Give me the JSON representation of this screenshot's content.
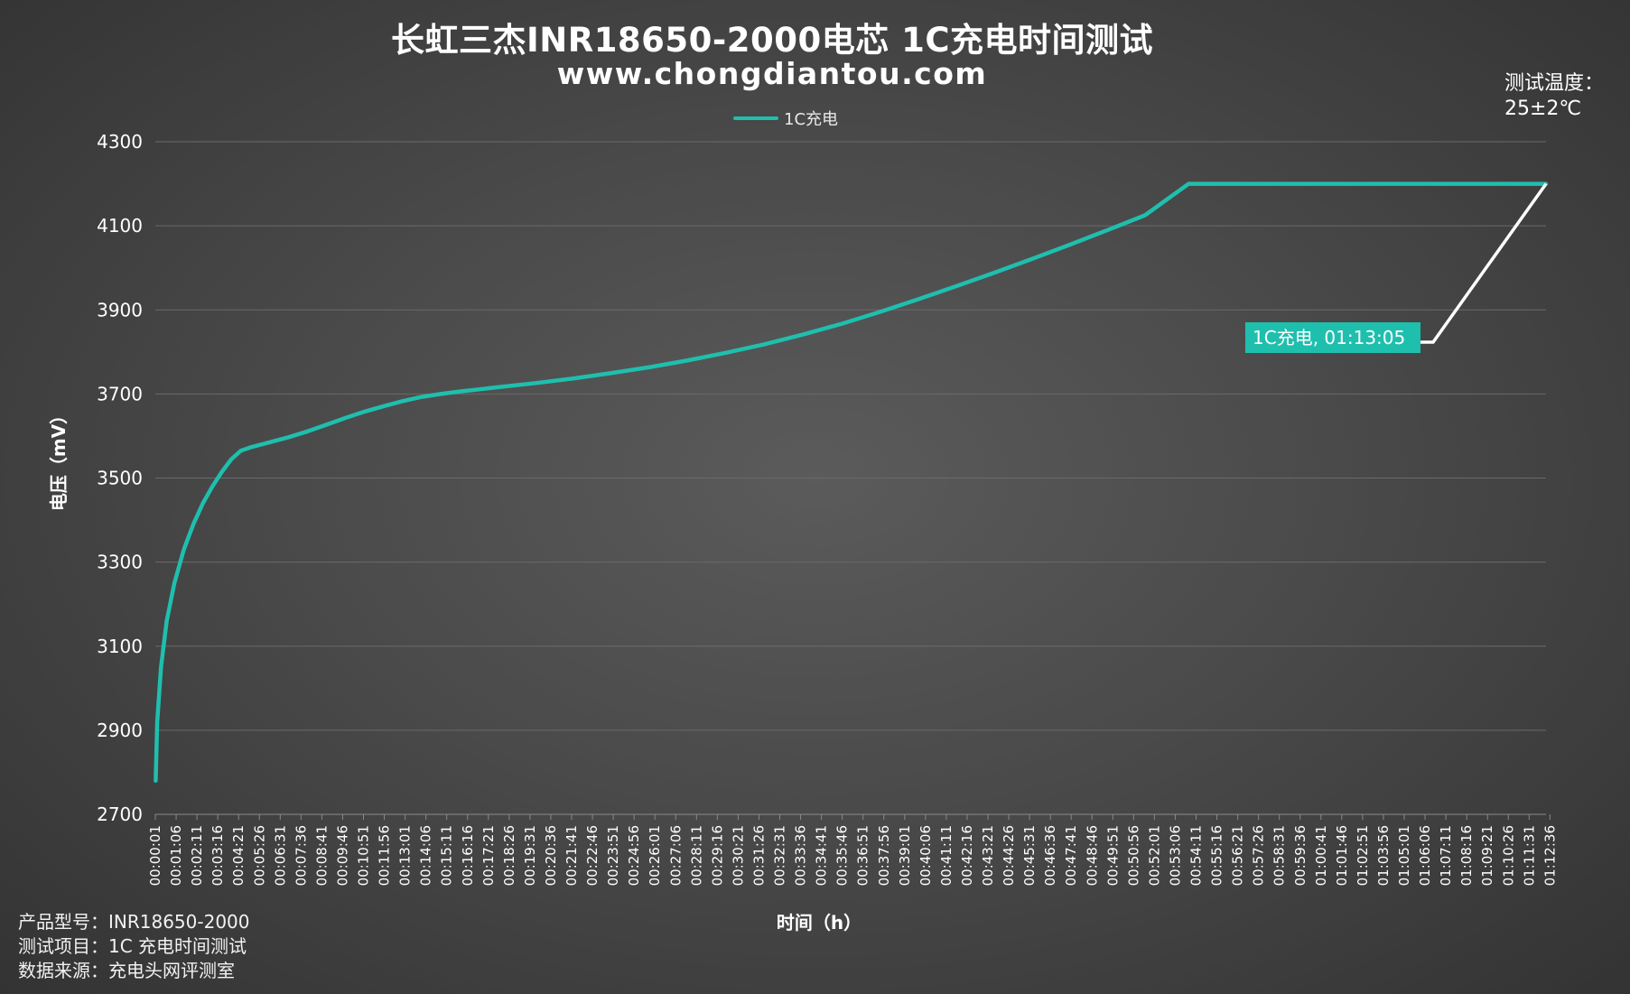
{
  "chart_data": {
    "type": "line",
    "title": "长虹三杰INR18650-2000电芯 1C充电时间测试",
    "subtitle": "www.chongdiantou.com",
    "xlabel": "时间（h）",
    "ylabel": "电压（mV）",
    "ylim": [
      2700,
      4300
    ],
    "yticks": [
      4300,
      4100,
      3900,
      3700,
      3500,
      3300,
      3100,
      2900,
      2700
    ],
    "grid": true,
    "legend_position": "top-center",
    "x_tick_labels": [
      "00:00:01",
      "00:01:06",
      "00:02:11",
      "00:03:16",
      "00:04:21",
      "00:05:26",
      "00:06:31",
      "00:07:36",
      "00:08:41",
      "00:09:46",
      "00:10:51",
      "00:11:56",
      "00:13:01",
      "00:14:06",
      "00:15:11",
      "00:16:16",
      "00:17:21",
      "00:18:26",
      "00:19:31",
      "00:20:36",
      "00:21:41",
      "00:22:46",
      "00:23:51",
      "00:24:56",
      "00:26:01",
      "00:27:06",
      "00:28:11",
      "00:29:16",
      "00:30:21",
      "00:31:26",
      "00:32:31",
      "00:33:36",
      "00:34:41",
      "00:35:46",
      "00:36:51",
      "00:37:56",
      "00:39:01",
      "00:40:06",
      "00:41:11",
      "00:42:16",
      "00:43:21",
      "00:44:26",
      "00:45:31",
      "00:46:36",
      "00:47:41",
      "00:48:46",
      "00:49:51",
      "00:50:56",
      "00:52:01",
      "00:53:06",
      "00:54:11",
      "00:55:16",
      "00:56:21",
      "00:57:26",
      "00:58:31",
      "00:59:36",
      "01:00:41",
      "01:01:46",
      "01:02:51",
      "01:03:56",
      "01:05:01",
      "01:06:06",
      "01:07:11",
      "01:08:16",
      "01:09:21",
      "01:10:26",
      "01:11:31",
      "01:12:36"
    ],
    "series": [
      {
        "name": "1C充电",
        "color": "#1fbfae",
        "x_minutes": [
          0.02,
          0.1,
          0.3,
          0.6,
          1.0,
          1.5,
          2.0,
          2.5,
          3.0,
          3.5,
          4.0,
          4.5,
          5.0,
          6.0,
          7.0,
          8.0,
          9.0,
          10.0,
          11.0,
          12.0,
          13.0,
          14.0,
          15.0,
          16.0,
          17.0,
          18.0,
          20.0,
          22.0,
          24.0,
          26.0,
          28.0,
          30.0,
          32.0,
          34.0,
          36.0,
          38.0,
          40.0,
          42.0,
          44.0,
          46.0,
          48.0,
          50.0,
          52.0,
          54.3,
          56.0,
          60.0,
          65.0,
          70.0,
          73.08
        ],
        "y_mv": [
          2780,
          2920,
          3050,
          3160,
          3250,
          3330,
          3390,
          3440,
          3480,
          3515,
          3545,
          3565,
          3573,
          3585,
          3597,
          3611,
          3627,
          3643,
          3658,
          3671,
          3683,
          3693,
          3700,
          3706,
          3711,
          3716,
          3726,
          3737,
          3750,
          3764,
          3780,
          3798,
          3818,
          3841,
          3866,
          3894,
          3924,
          3955,
          3987,
          4020,
          4054,
          4089,
          4125,
          4200,
          4200,
          4200,
          4200,
          4200,
          4200
        ]
      }
    ],
    "annotation": {
      "text": "1C充电, 01:13:05",
      "x_minutes": 73.08,
      "y_mv": 4200
    }
  },
  "temperature": {
    "label": "测试温度：",
    "value": "25±2℃"
  },
  "footer": {
    "product": "产品型号：INR18650-2000",
    "item": "测试项目：1C 充电时间测试",
    "source": "数据来源：充电头网评测室"
  }
}
